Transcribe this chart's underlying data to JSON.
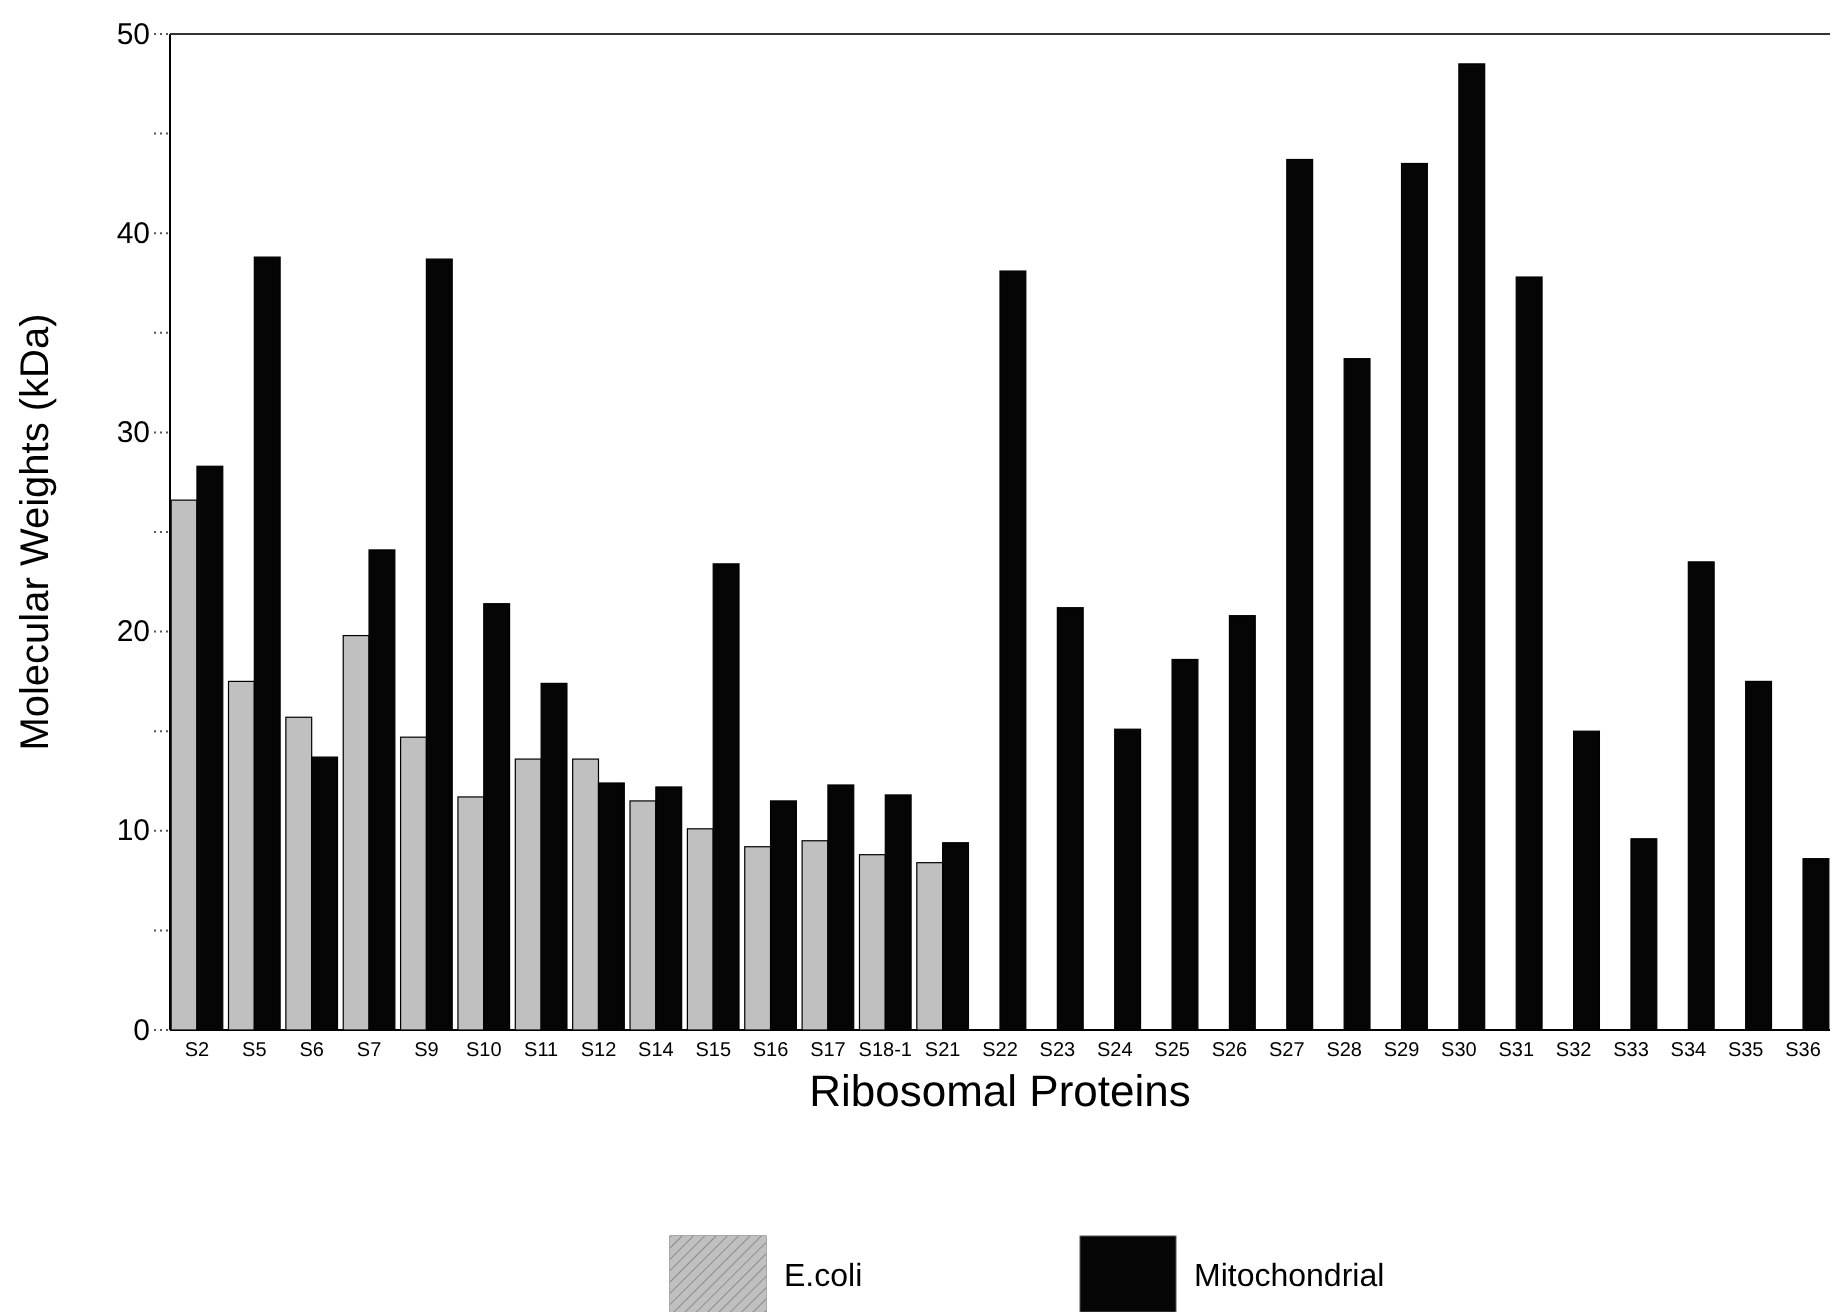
{
  "chart_data": {
    "type": "bar",
    "xlabel": "Ribosomal Proteins",
    "ylabel": "Molecular Weights (kDa)",
    "categories": [
      "S2",
      "S5",
      "S6",
      "S7",
      "S9",
      "S10",
      "S11",
      "S12",
      "S14",
      "S15",
      "S16",
      "S17",
      "S18-1",
      "S21",
      "S22",
      "S23",
      "S24",
      "S25",
      "S26",
      "S27",
      "S28",
      "S29",
      "S30",
      "S31",
      "S32",
      "S33",
      "S34",
      "S35",
      "S36"
    ],
    "series": [
      {
        "name": "E.coli",
        "color": "#c0c0c0",
        "values": [
          26.6,
          17.5,
          15.7,
          19.8,
          14.7,
          11.7,
          13.6,
          13.6,
          11.5,
          10.1,
          9.2,
          9.5,
          8.8,
          8.4,
          null,
          null,
          null,
          null,
          null,
          null,
          null,
          null,
          null,
          null,
          null,
          null,
          null,
          null,
          null
        ]
      },
      {
        "name": "Mitochondrial",
        "color": "#050505",
        "values": [
          28.3,
          38.8,
          13.7,
          24.1,
          38.7,
          21.4,
          17.4,
          12.4,
          12.2,
          23.4,
          11.5,
          12.3,
          11.8,
          9.4,
          38.1,
          21.2,
          15.1,
          18.6,
          20.8,
          43.7,
          33.7,
          43.5,
          48.5,
          37.8,
          15.0,
          9.6,
          23.5,
          17.5,
          8.6
        ]
      }
    ],
    "ylim": [
      0,
      50
    ],
    "yticks": [
      0,
      {
        "value": 5,
        "label": null
      },
      10,
      {
        "value": 15,
        "label": null
      },
      20,
      {
        "value": 25,
        "label": null
      },
      30,
      {
        "value": 35,
        "label": null
      },
      40,
      {
        "value": 45,
        "label": null
      },
      50
    ],
    "legend": "bottom"
  }
}
